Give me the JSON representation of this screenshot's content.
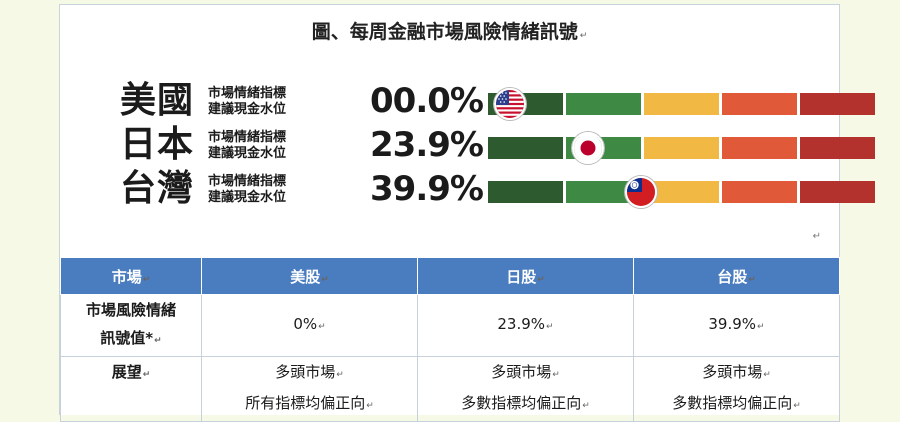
{
  "figure": {
    "title": "圖、每周金融市場風險情緒訊號",
    "sub_line1": "市場情緒指標",
    "sub_line2": "建議現金水位",
    "segment_colors": [
      "#2d5a2f",
      "#3e8a45",
      "#f1b843",
      "#e05a3a",
      "#b3322e"
    ],
    "rows": [
      {
        "country": "美國",
        "percent": "00.0%",
        "value": 0.0,
        "flag": "us-flag-icon"
      },
      {
        "country": "日本",
        "percent": "23.9%",
        "value": 23.9,
        "flag": "japan-flag-icon"
      },
      {
        "country": "台灣",
        "percent": "39.9%",
        "value": 39.9,
        "flag": "taiwan-flag-icon"
      }
    ]
  },
  "table": {
    "headers": [
      "市場",
      "美股",
      "日股",
      "台股"
    ],
    "signal_row": {
      "label_line1": "市場風險情緒",
      "label_line2": "訊號值*",
      "values": [
        "0%",
        "23.9%",
        "39.9%"
      ]
    },
    "outlook_row": {
      "label": "展望",
      "values": [
        {
          "line1": "多頭市場",
          "line2": "所有指標均偏正向"
        },
        {
          "line1": "多頭市場",
          "line2": "多數指標均偏正向"
        },
        {
          "line1": "多頭市場",
          "line2": "多數指標均偏正向"
        }
      ]
    }
  }
}
